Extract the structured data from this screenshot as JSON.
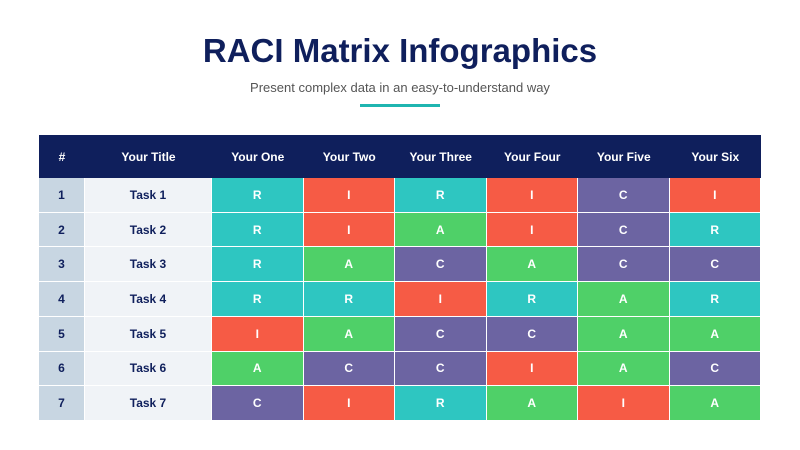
{
  "header": {
    "title": "RACI Matrix Infographics",
    "subtitle": "Present complex data in an easy-to-understand way"
  },
  "table": {
    "columns": [
      "#",
      "Your Title",
      "Your One",
      "Your Two",
      "Your Three",
      "Your Four",
      "Your Five",
      "Your Six"
    ],
    "rows": [
      [
        1,
        "Task 1",
        "R",
        "I",
        "R",
        "I",
        "C",
        "I"
      ],
      [
        2,
        "Task 2",
        "R",
        "I",
        "A",
        "I",
        "C",
        "R"
      ],
      [
        3,
        "Task 3",
        "R",
        "A",
        "C",
        "A",
        "C",
        "C"
      ],
      [
        4,
        "Task 4",
        "R",
        "R",
        "I",
        "R",
        "A",
        "R"
      ],
      [
        5,
        "Task 5",
        "I",
        "A",
        "C",
        "C",
        "A",
        "A"
      ],
      [
        6,
        "Task 6",
        "A",
        "C",
        "C",
        "I",
        "A",
        "C"
      ],
      [
        7,
        "Task 7",
        "C",
        "I",
        "R",
        "A",
        "I",
        "A"
      ]
    ],
    "cell_colors": {
      "R": "#2ec6c1",
      "I": "#f65b45",
      "A": "#4fd068",
      "C": "#6c64a2"
    }
  }
}
